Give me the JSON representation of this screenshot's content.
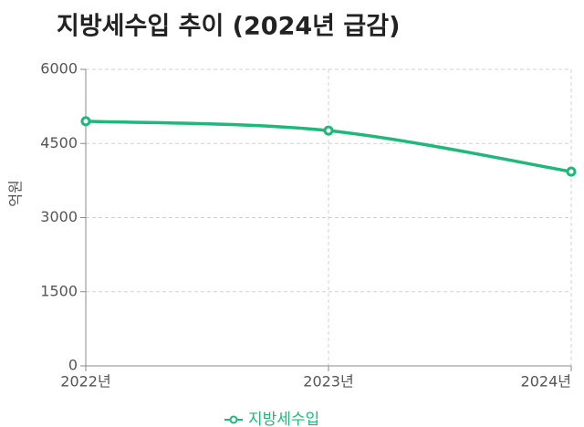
{
  "chart_data": {
    "type": "line",
    "title": "지방세수입 추이 (2024년 급감)",
    "y_label": "억원",
    "categories": [
      "2022년",
      "2023년",
      "2024년"
    ],
    "series": [
      {
        "name": "지방세수입",
        "color": "#1fb77a",
        "values": [
          4950,
          4760,
          3930
        ]
      }
    ],
    "ylim": [
      0,
      6000
    ],
    "yticks": [
      0,
      1500,
      3000,
      4500,
      6000
    ],
    "grid": true
  }
}
